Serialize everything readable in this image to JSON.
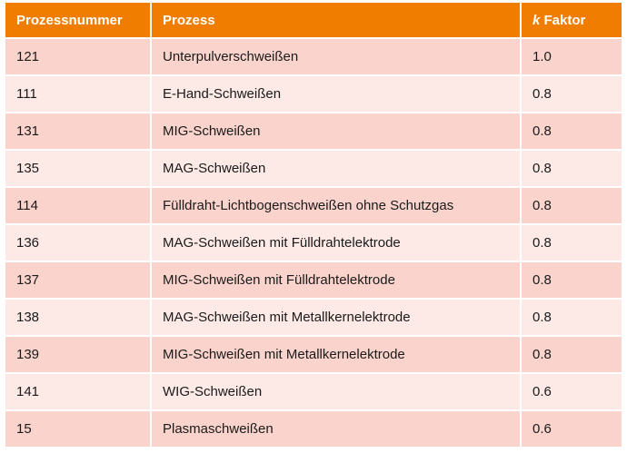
{
  "table": {
    "headers": {
      "process_number": "Prozessnummer",
      "process": "Prozess",
      "k_symbol": "k",
      "factor": "Faktor"
    },
    "rows": [
      {
        "number": "121",
        "process": "Unterpulverschweißen",
        "k": "1.0"
      },
      {
        "number": "111",
        "process": "E-Hand-Schweißen",
        "k": "0.8"
      },
      {
        "number": "131",
        "process": "MIG-Schweißen",
        "k": "0.8"
      },
      {
        "number": "135",
        "process": "MAG-Schweißen",
        "k": "0.8"
      },
      {
        "number": "114",
        "process": "Fülldraht-Lichtbogenschweißen ohne Schutzgas",
        "k": "0.8"
      },
      {
        "number": "136",
        "process": "MAG-Schweißen mit Fülldrahtelektrode",
        "k": "0.8"
      },
      {
        "number": "137",
        "process": "MIG-Schweißen mit Fülldrahtelektrode",
        "k": "0.8"
      },
      {
        "number": "138",
        "process": "MAG-Schweißen mit Metallkernelektrode",
        "k": "0.8"
      },
      {
        "number": "139",
        "process": "MIG-Schweißen mit Metallkernelektrode",
        "k": "0.8"
      },
      {
        "number": "141",
        "process": "WIG-Schweißen",
        "k": "0.6"
      },
      {
        "number": "15",
        "process": "Plasmaschweißen",
        "k": "0.6"
      }
    ]
  },
  "colors": {
    "header_bg": "#f07d00",
    "row_dark": "#fad4cc",
    "row_light": "#fdeae6"
  }
}
